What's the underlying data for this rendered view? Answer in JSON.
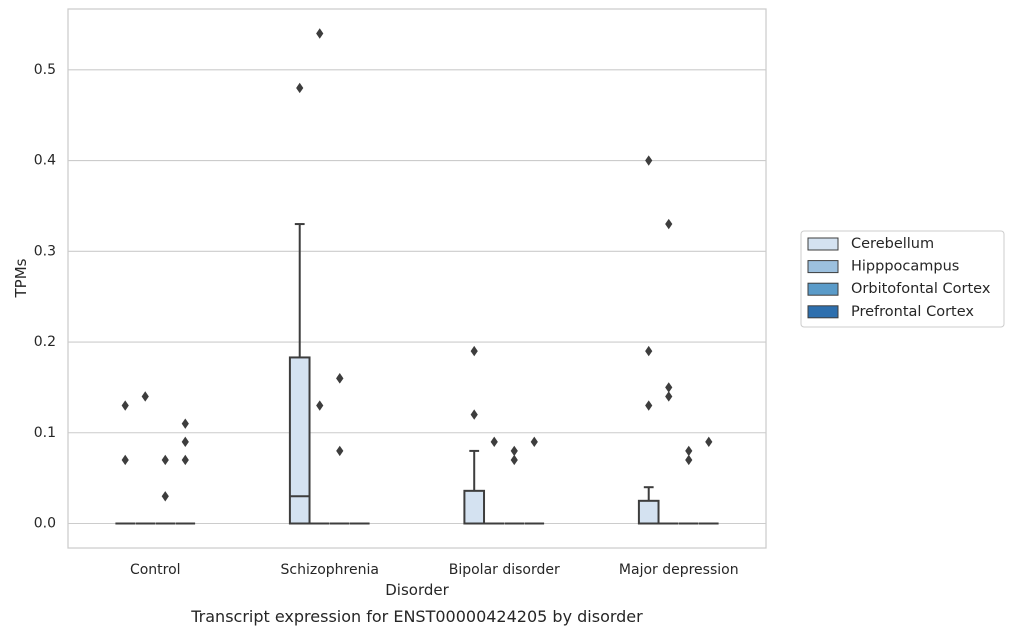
{
  "chart_data": {
    "type": "box",
    "title": "",
    "caption": "Transcript expression for ENST00000424205 by disorder",
    "xlabel": "Disorder",
    "ylabel": "TPMs",
    "ylim": [
      -0.027,
      0.567
    ],
    "yticks": [
      0.0,
      0.1,
      0.2,
      0.3,
      0.4,
      0.5
    ],
    "ytick_labels": [
      "0.0",
      "0.1",
      "0.2",
      "0.3",
      "0.4",
      "0.5"
    ],
    "grid": "horizontal",
    "legend_position": "right",
    "categories": [
      "Control",
      "Schizophrenia",
      "Bipolar disorder",
      "Major depression"
    ],
    "series": [
      {
        "name": "Cerebellum",
        "color": "#d4e2f1",
        "boxes": [
          {
            "category": "Control",
            "q1": 0,
            "median": 0,
            "q3": 0,
            "whisker_low": 0,
            "whisker_high": 0,
            "outliers": [
              0.13,
              0.07
            ]
          },
          {
            "category": "Schizophrenia",
            "q1": 0,
            "median": 0.03,
            "q3": 0.183,
            "whisker_low": 0,
            "whisker_high": 0.33,
            "outliers": [
              0.48
            ]
          },
          {
            "category": "Bipolar disorder",
            "q1": 0,
            "median": 0,
            "q3": 0.036,
            "whisker_low": 0,
            "whisker_high": 0.08,
            "outliers": [
              0.19,
              0.12
            ]
          },
          {
            "category": "Major depression",
            "q1": 0,
            "median": 0,
            "q3": 0.025,
            "whisker_low": 0,
            "whisker_high": 0.04,
            "outliers": [
              0.4,
              0.19,
              0.13
            ]
          }
        ]
      },
      {
        "name": "Hipppocampus",
        "color": "#9cc0de",
        "boxes": [
          {
            "category": "Control",
            "q1": 0,
            "median": 0,
            "q3": 0,
            "whisker_low": 0,
            "whisker_high": 0,
            "outliers": [
              0.14
            ]
          },
          {
            "category": "Schizophrenia",
            "q1": 0,
            "median": 0,
            "q3": 0,
            "whisker_low": 0,
            "whisker_high": 0,
            "outliers": [
              0.54,
              0.13
            ]
          },
          {
            "category": "Bipolar disorder",
            "q1": 0,
            "median": 0,
            "q3": 0,
            "whisker_low": 0,
            "whisker_high": 0,
            "outliers": [
              0.09
            ]
          },
          {
            "category": "Major depression",
            "q1": 0,
            "median": 0,
            "q3": 0,
            "whisker_low": 0,
            "whisker_high": 0,
            "outliers": [
              0.33,
              0.15,
              0.14
            ]
          }
        ]
      },
      {
        "name": "Orbitofontal Cortex",
        "color": "#5a9bc9",
        "boxes": [
          {
            "category": "Control",
            "q1": 0,
            "median": 0,
            "q3": 0,
            "whisker_low": 0,
            "whisker_high": 0,
            "outliers": [
              0.07,
              0.03
            ]
          },
          {
            "category": "Schizophrenia",
            "q1": 0,
            "median": 0,
            "q3": 0,
            "whisker_low": 0,
            "whisker_high": 0,
            "outliers": [
              0.16,
              0.16,
              0.08
            ]
          },
          {
            "category": "Bipolar disorder",
            "q1": 0,
            "median": 0,
            "q3": 0,
            "whisker_low": 0,
            "whisker_high": 0,
            "outliers": [
              0.08,
              0.07
            ]
          },
          {
            "category": "Major depression",
            "q1": 0,
            "median": 0,
            "q3": 0,
            "whisker_low": 0,
            "whisker_high": 0,
            "outliers": [
              0.08,
              0.07
            ]
          }
        ]
      },
      {
        "name": "Prefrontal Cortex",
        "color": "#2d6fae",
        "boxes": [
          {
            "category": "Control",
            "q1": 0,
            "median": 0,
            "q3": 0,
            "whisker_low": 0,
            "whisker_high": 0,
            "outliers": [
              0.11,
              0.09,
              0.07
            ]
          },
          {
            "category": "Schizophrenia",
            "q1": 0,
            "median": 0,
            "q3": 0,
            "whisker_low": 0,
            "whisker_high": 0,
            "outliers": []
          },
          {
            "category": "Bipolar disorder",
            "q1": 0,
            "median": 0,
            "q3": 0,
            "whisker_low": 0,
            "whisker_high": 0,
            "outliers": [
              0.09
            ]
          },
          {
            "category": "Major depression",
            "q1": 0,
            "median": 0,
            "q3": 0,
            "whisker_low": 0,
            "whisker_high": 0,
            "outliers": [
              0.09
            ]
          }
        ]
      }
    ]
  }
}
